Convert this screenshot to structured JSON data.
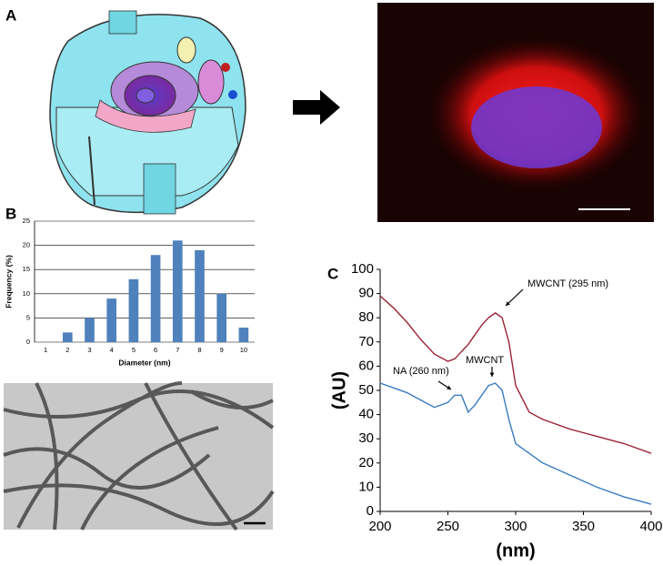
{
  "panel_labels": [
    "A",
    "B",
    "C"
  ],
  "chart_data": [
    {
      "type": "bar",
      "x_label": "Diameter (nm)",
      "y_label": "Frequency (%)",
      "categories": [
        "1",
        "2",
        "3",
        "4",
        "5",
        "6",
        "7",
        "8",
        "9",
        "10"
      ],
      "values": [
        0,
        2,
        5,
        9,
        13,
        18,
        21,
        19,
        10,
        3
      ],
      "color": "#4f81bd",
      "ylim": [
        0,
        25
      ],
      "yticks": [
        0,
        5,
        10,
        15,
        20,
        25
      ],
      "grid": true
    },
    {
      "type": "line",
      "x_label": "(nm)",
      "y_label": "(AU)",
      "x": [
        200,
        210,
        220,
        230,
        240,
        250,
        255,
        260,
        265,
        270,
        275,
        280,
        285,
        290,
        295,
        300,
        310,
        320,
        340,
        360,
        380,
        400
      ],
      "series": [
        {
          "color": "#9b2335",
          "values": [
            89,
            84,
            78,
            71,
            65,
            62,
            63,
            66,
            69,
            73,
            77,
            80,
            82,
            80,
            70,
            52,
            41,
            38,
            34,
            31,
            28,
            24
          ]
        },
        {
          "color": "#3a7bbf",
          "values": [
            53,
            51,
            49,
            46,
            43,
            45,
            48,
            48,
            41,
            44,
            48,
            52,
            53,
            50,
            38,
            28,
            24,
            20,
            15,
            10,
            6,
            3
          ]
        }
      ],
      "xlim": [
        200,
        400
      ],
      "xticks": [
        200,
        250,
        300,
        350,
        400
      ],
      "ylim": [
        0,
        100
      ],
      "yticks": [
        0,
        10,
        20,
        30,
        40,
        50,
        60,
        70,
        80,
        90,
        100
      ],
      "annotations": [
        "MWCNT (295 nm)",
        "NA (260 nm)",
        "MWCNT"
      ]
    }
  ]
}
